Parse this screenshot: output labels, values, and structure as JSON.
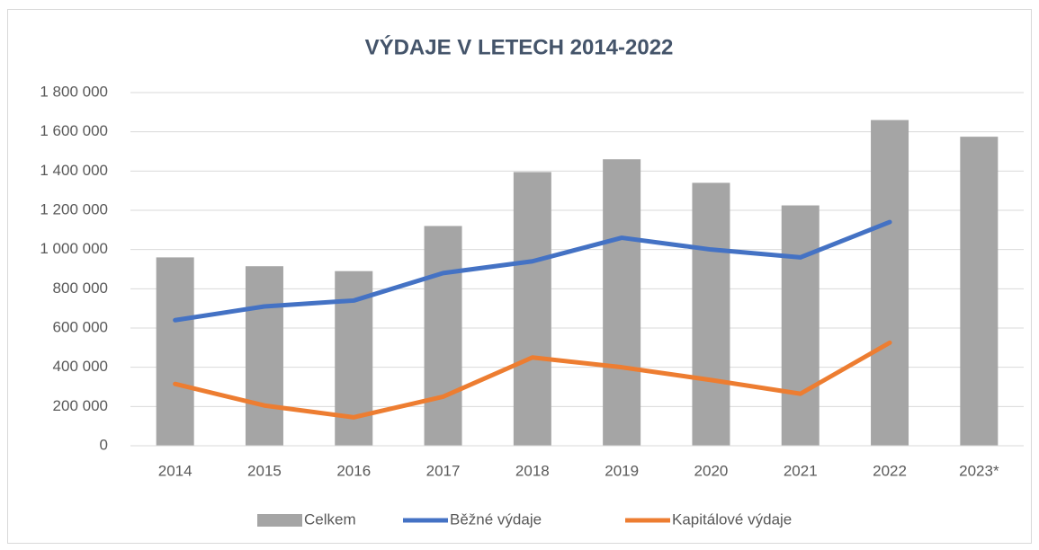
{
  "chart_data": {
    "type": "bar",
    "title": "VÝDAJE V LETECH 2014-2022",
    "categories": [
      "2014",
      "2015",
      "2016",
      "2017",
      "2018",
      "2019",
      "2020",
      "2021",
      "2022",
      "2023*"
    ],
    "series": [
      {
        "name": "Celkem",
        "type": "bar",
        "color": "#a5a5a5",
        "values": [
          960000,
          915000,
          890000,
          1120000,
          1395000,
          1460000,
          1340000,
          1225000,
          1660000,
          1575000
        ]
      },
      {
        "name": "Běžné výdaje",
        "type": "line",
        "color": "#4472c4",
        "values": [
          640000,
          710000,
          740000,
          880000,
          940000,
          1060000,
          1000000,
          960000,
          1140000,
          null
        ]
      },
      {
        "name": "Kapitálové výdaje",
        "type": "line",
        "color": "#ed7d31",
        "values": [
          315000,
          205000,
          145000,
          250000,
          450000,
          400000,
          335000,
          265000,
          525000,
          null
        ]
      }
    ],
    "ylim": [
      0,
      1800000
    ],
    "yticks": [
      0,
      {
        "value": 200000,
        "label": "200 000"
      },
      {
        "value": 400000,
        "label": "400 000"
      },
      {
        "value": 600000,
        "label": "600 000"
      },
      {
        "value": 800000,
        "label": "800 000"
      },
      {
        "value": 1000000,
        "label": "1 000 000"
      },
      {
        "value": 1200000,
        "label": "1 200 000"
      },
      {
        "value": 1400000,
        "label": "1 400 000"
      },
      {
        "value": 1600000,
        "label": "1 600 000"
      },
      {
        "value": 1800000,
        "label": "1 800 000"
      }
    ],
    "grid": true,
    "legend": "bottom"
  }
}
